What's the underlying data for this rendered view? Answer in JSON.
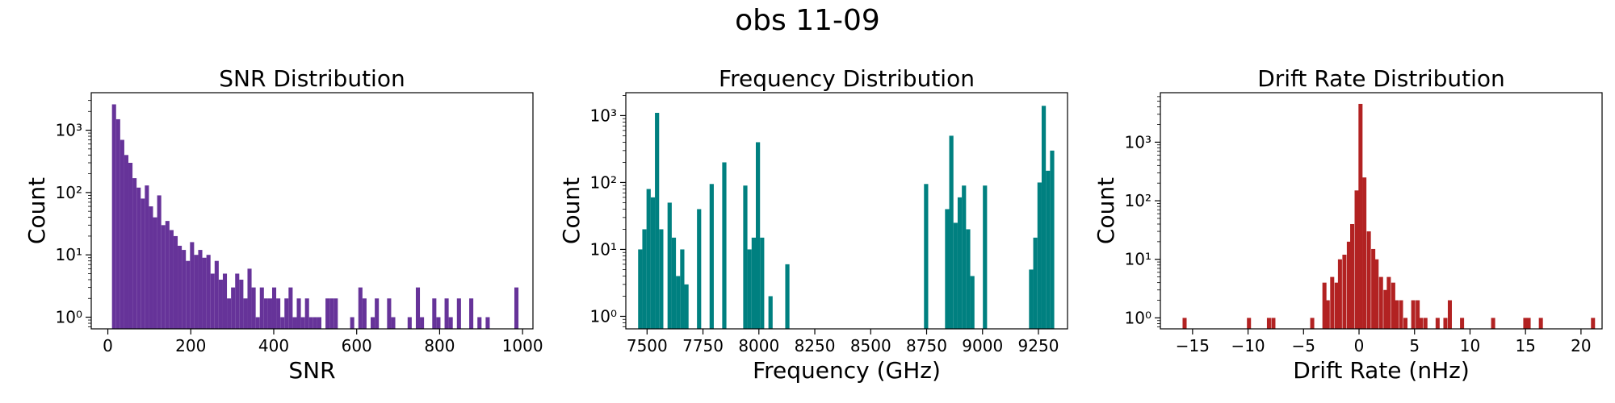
{
  "figure": {
    "title": "obs 11-09"
  },
  "chart_data": [
    {
      "type": "bar",
      "title": "SNR Distribution",
      "xlabel": "SNR",
      "ylabel": "Count",
      "yscale": "log",
      "xlim": [
        -40,
        1025
      ],
      "ylim": [
        0.65,
        4000
      ],
      "xticks": [
        0,
        200,
        400,
        600,
        800,
        1000
      ],
      "yticks": [
        {
          "value": 1,
          "label": "10⁰"
        },
        {
          "value": 10,
          "label": "10¹"
        },
        {
          "value": 100,
          "label": "10²"
        },
        {
          "value": 1000,
          "label": "10³"
        }
      ],
      "grid": false,
      "color": "#663399",
      "bin_width": 9.9,
      "bins": [
        {
          "x": 10,
          "count": 2600
        },
        {
          "x": 19.9,
          "count": 1500
        },
        {
          "x": 29.8,
          "count": 700
        },
        {
          "x": 39.7,
          "count": 400
        },
        {
          "x": 49.6,
          "count": 300
        },
        {
          "x": 59.5,
          "count": 170
        },
        {
          "x": 69.4,
          "count": 120
        },
        {
          "x": 79.3,
          "count": 80
        },
        {
          "x": 89.2,
          "count": 130
        },
        {
          "x": 99.1,
          "count": 60
        },
        {
          "x": 109,
          "count": 40
        },
        {
          "x": 118.9,
          "count": 90
        },
        {
          "x": 128.8,
          "count": 30
        },
        {
          "x": 138.7,
          "count": 35
        },
        {
          "x": 148.6,
          "count": 25
        },
        {
          "x": 158.5,
          "count": 20
        },
        {
          "x": 168.4,
          "count": 14
        },
        {
          "x": 178.3,
          "count": 12
        },
        {
          "x": 188.2,
          "count": 8
        },
        {
          "x": 198.1,
          "count": 16
        },
        {
          "x": 208,
          "count": 10
        },
        {
          "x": 217.9,
          "count": 12
        },
        {
          "x": 227.8,
          "count": 9
        },
        {
          "x": 237.7,
          "count": 10
        },
        {
          "x": 247.6,
          "count": 5
        },
        {
          "x": 257.5,
          "count": 8
        },
        {
          "x": 267.4,
          "count": 4
        },
        {
          "x": 277.3,
          "count": 5
        },
        {
          "x": 287.2,
          "count": 2
        },
        {
          "x": 297.1,
          "count": 3
        },
        {
          "x": 307,
          "count": 5
        },
        {
          "x": 316.9,
          "count": 4
        },
        {
          "x": 326.8,
          "count": 2
        },
        {
          "x": 336.7,
          "count": 6
        },
        {
          "x": 346.6,
          "count": 3
        },
        {
          "x": 356.5,
          "count": 1
        },
        {
          "x": 366.4,
          "count": 3
        },
        {
          "x": 376.3,
          "count": 2
        },
        {
          "x": 386.2,
          "count": 2
        },
        {
          "x": 396.1,
          "count": 3
        },
        {
          "x": 406,
          "count": 2
        },
        {
          "x": 415.9,
          "count": 1
        },
        {
          "x": 425.8,
          "count": 2
        },
        {
          "x": 435.7,
          "count": 3
        },
        {
          "x": 445.6,
          "count": 1
        },
        {
          "x": 455.5,
          "count": 2
        },
        {
          "x": 465.4,
          "count": 1
        },
        {
          "x": 475.3,
          "count": 2
        },
        {
          "x": 485.2,
          "count": 1
        },
        {
          "x": 495.1,
          "count": 1
        },
        {
          "x": 505,
          "count": 1
        },
        {
          "x": 524.8,
          "count": 2
        },
        {
          "x": 534.7,
          "count": 2
        },
        {
          "x": 544.6,
          "count": 2
        },
        {
          "x": 584.2,
          "count": 1
        },
        {
          "x": 604,
          "count": 3
        },
        {
          "x": 613.9,
          "count": 2
        },
        {
          "x": 633.7,
          "count": 1
        },
        {
          "x": 643.6,
          "count": 2
        },
        {
          "x": 673.3,
          "count": 2
        },
        {
          "x": 683.2,
          "count": 1
        },
        {
          "x": 722.8,
          "count": 1
        },
        {
          "x": 742.6,
          "count": 3
        },
        {
          "x": 752.5,
          "count": 1
        },
        {
          "x": 782.2,
          "count": 2
        },
        {
          "x": 792.1,
          "count": 1
        },
        {
          "x": 811.9,
          "count": 2
        },
        {
          "x": 821.8,
          "count": 1
        },
        {
          "x": 841.6,
          "count": 2
        },
        {
          "x": 871.3,
          "count": 2
        },
        {
          "x": 891.1,
          "count": 1
        },
        {
          "x": 910.9,
          "count": 1
        },
        {
          "x": 980.2,
          "count": 3
        }
      ]
    },
    {
      "type": "bar",
      "title": "Frequency Distribution",
      "xlabel": "Frequency (GHz)",
      "ylabel": "Count",
      "yscale": "log",
      "xlim": [
        7405,
        9380
      ],
      "ylim": [
        0.65,
        2200
      ],
      "xticks": [
        7500,
        7750,
        8000,
        8250,
        8500,
        8750,
        9000,
        9250
      ],
      "yticks": [
        {
          "value": 1,
          "label": "10⁰"
        },
        {
          "value": 10,
          "label": "10¹"
        },
        {
          "value": 100,
          "label": "10²"
        },
        {
          "value": 1000,
          "label": "10³"
        }
      ],
      "grid": false,
      "color": "#008080",
      "bin_width": 18.8,
      "bins": [
        {
          "x": 7460,
          "count": 10
        },
        {
          "x": 7478.8,
          "count": 20
        },
        {
          "x": 7497.6,
          "count": 80
        },
        {
          "x": 7516.4,
          "count": 60
        },
        {
          "x": 7535.2,
          "count": 1100
        },
        {
          "x": 7554,
          "count": 20
        },
        {
          "x": 7591.6,
          "count": 50
        },
        {
          "x": 7610.4,
          "count": 15
        },
        {
          "x": 7629.2,
          "count": 4
        },
        {
          "x": 7648,
          "count": 10
        },
        {
          "x": 7666.8,
          "count": 3
        },
        {
          "x": 7723.2,
          "count": 40
        },
        {
          "x": 7779.6,
          "count": 95
        },
        {
          "x": 7836,
          "count": 200
        },
        {
          "x": 7929.9,
          "count": 90
        },
        {
          "x": 7948.7,
          "count": 10
        },
        {
          "x": 7967.5,
          "count": 15
        },
        {
          "x": 7986.3,
          "count": 400
        },
        {
          "x": 8005.1,
          "count": 15
        },
        {
          "x": 8042.7,
          "count": 2
        },
        {
          "x": 8117.9,
          "count": 6
        },
        {
          "x": 8738.3,
          "count": 95
        },
        {
          "x": 8832.3,
          "count": 40
        },
        {
          "x": 8851.1,
          "count": 500
        },
        {
          "x": 8869.9,
          "count": 25
        },
        {
          "x": 8888.7,
          "count": 60
        },
        {
          "x": 8907.5,
          "count": 90
        },
        {
          "x": 8926.3,
          "count": 20
        },
        {
          "x": 8945.1,
          "count": 4
        },
        {
          "x": 9001.5,
          "count": 90
        },
        {
          "x": 9207.9,
          "count": 5
        },
        {
          "x": 9226.7,
          "count": 15
        },
        {
          "x": 9245.5,
          "count": 100
        },
        {
          "x": 9264.3,
          "count": 1400
        },
        {
          "x": 9283.1,
          "count": 150
        },
        {
          "x": 9301.9,
          "count": 300
        }
      ]
    },
    {
      "type": "bar",
      "title": "Drift Rate Distribution",
      "xlabel": "Drift Rate (nHz)",
      "ylabel": "Count",
      "yscale": "log",
      "xlim": [
        -17.9,
        21.9
      ],
      "ylim": [
        0.65,
        7000
      ],
      "xticks": [
        -15,
        -10,
        -5,
        0,
        5,
        10,
        15,
        20
      ],
      "yticks": [
        {
          "value": 1,
          "label": "10⁰"
        },
        {
          "value": 10,
          "label": "10¹"
        },
        {
          "value": 100,
          "label": "10²"
        },
        {
          "value": 1000,
          "label": "10³"
        }
      ],
      "grid": false,
      "color": "#b22222",
      "bin_width": 0.365,
      "bins": [
        {
          "x": -15.9,
          "count": 1
        },
        {
          "x": -10.1,
          "count": 1
        },
        {
          "x": -8.3,
          "count": 1
        },
        {
          "x": -7.9,
          "count": 1
        },
        {
          "x": -4.4,
          "count": 1
        },
        {
          "x": -3.3,
          "count": 4
        },
        {
          "x": -3.0,
          "count": 2
        },
        {
          "x": -2.6,
          "count": 5
        },
        {
          "x": -2.2,
          "count": 4
        },
        {
          "x": -1.9,
          "count": 10
        },
        {
          "x": -1.5,
          "count": 12
        },
        {
          "x": -1.1,
          "count": 20
        },
        {
          "x": -0.8,
          "count": 40
        },
        {
          "x": -0.4,
          "count": 150
        },
        {
          "x": -0.05,
          "count": 4500
        },
        {
          "x": 0.3,
          "count": 250
        },
        {
          "x": 0.7,
          "count": 30
        },
        {
          "x": 1.1,
          "count": 15
        },
        {
          "x": 1.4,
          "count": 10
        },
        {
          "x": 1.8,
          "count": 5
        },
        {
          "x": 2.2,
          "count": 3
        },
        {
          "x": 2.5,
          "count": 5
        },
        {
          "x": 2.9,
          "count": 4
        },
        {
          "x": 3.2,
          "count": 2
        },
        {
          "x": 3.6,
          "count": 2
        },
        {
          "x": 4.0,
          "count": 1
        },
        {
          "x": 4.7,
          "count": 2
        },
        {
          "x": 5.1,
          "count": 2
        },
        {
          "x": 5.4,
          "count": 1
        },
        {
          "x": 5.8,
          "count": 1
        },
        {
          "x": 6.9,
          "count": 1
        },
        {
          "x": 7.6,
          "count": 1
        },
        {
          "x": 8.0,
          "count": 2
        },
        {
          "x": 9.1,
          "count": 1
        },
        {
          "x": 11.9,
          "count": 1
        },
        {
          "x": 14.8,
          "count": 1
        },
        {
          "x": 15.1,
          "count": 1
        },
        {
          "x": 16.2,
          "count": 1
        },
        {
          "x": 20.9,
          "count": 1
        }
      ]
    }
  ]
}
